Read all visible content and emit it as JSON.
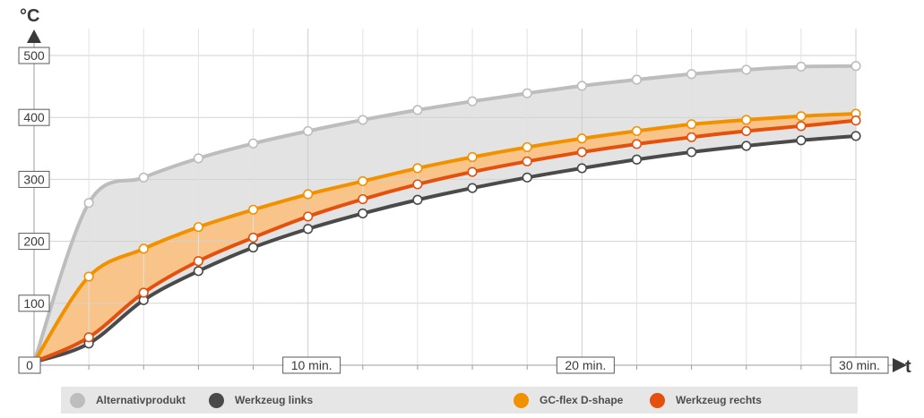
{
  "chart_data": {
    "type": "line",
    "ylabel": "°C",
    "xlabel": "t",
    "xlim": [
      0,
      30
    ],
    "ylim": [
      0,
      500
    ],
    "y_ticks": [
      0,
      100,
      200,
      300,
      400,
      500
    ],
    "y_tick_labels": [
      "0",
      "100",
      "200",
      "300",
      "400",
      "500"
    ],
    "x_tick_values": [
      10,
      20,
      30
    ],
    "x_tick_labels": [
      "10 min.",
      "20 min.",
      "30 min."
    ],
    "grid": true,
    "legend_position": "bottom",
    "series": [
      {
        "name": "Alternativprodukt",
        "color": "#bdbdbd",
        "x": [
          0,
          2,
          4,
          6,
          8,
          10,
          12,
          14,
          16,
          18,
          20,
          22,
          24,
          26,
          28,
          30
        ],
        "y": [
          5,
          262,
          303,
          334,
          358,
          378,
          396,
          412,
          426,
          439,
          451,
          461,
          470,
          477,
          482,
          483
        ]
      },
      {
        "name": "Werkzeug links",
        "color": "#4a4a4a",
        "x": [
          0,
          2,
          4,
          6,
          8,
          10,
          12,
          14,
          16,
          18,
          20,
          22,
          24,
          26,
          28,
          30
        ],
        "y": [
          5,
          35,
          105,
          152,
          190,
          220,
          245,
          267,
          286,
          303,
          318,
          332,
          344,
          354,
          363,
          370
        ]
      },
      {
        "name": "GC-flex D-shape",
        "color": "#f29100",
        "x": [
          0,
          2,
          4,
          6,
          8,
          10,
          12,
          14,
          16,
          18,
          20,
          22,
          24,
          26,
          28,
          30
        ],
        "y": [
          5,
          143,
          188,
          223,
          251,
          276,
          297,
          318,
          336,
          352,
          366,
          378,
          389,
          396,
          402,
          406
        ]
      },
      {
        "name": "Werkzeug rechts",
        "color": "#e4500e",
        "x": [
          0,
          2,
          4,
          6,
          8,
          10,
          12,
          14,
          16,
          18,
          20,
          22,
          24,
          26,
          28,
          30
        ],
        "y": [
          5,
          45,
          117,
          168,
          206,
          240,
          268,
          292,
          312,
          329,
          344,
          357,
          368,
          378,
          386,
          395
        ]
      }
    ],
    "bands": [
      {
        "between": [
          "Alternativprodukt",
          "Werkzeug links"
        ],
        "color": "#e3e3e3"
      },
      {
        "between": [
          "GC-flex D-shape",
          "Werkzeug rechts"
        ],
        "color": "#f9c48a"
      }
    ]
  },
  "legend": {
    "items": [
      {
        "label": "Alternativprodukt",
        "color": "#bdbdbd"
      },
      {
        "label": "Werkzeug links",
        "color": "#4a4a4a"
      },
      {
        "label": "GC-flex D-shape",
        "color": "#f29100"
      },
      {
        "label": "Werkzeug rechts",
        "color": "#e4500e"
      }
    ]
  }
}
